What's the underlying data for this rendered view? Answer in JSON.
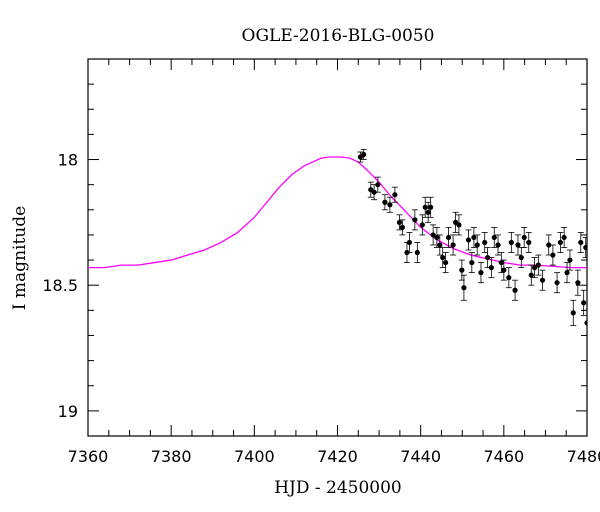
{
  "chart_data": {
    "type": "scatter",
    "title": "OGLE-2016-BLG-0050",
    "xlabel": "HJD - 2450000",
    "ylabel": "I magnitude",
    "xlim": [
      7360,
      7480
    ],
    "ylim": [
      19.1,
      17.6
    ],
    "y_inverted": true,
    "x_ticks": [
      7360,
      7380,
      7400,
      7420,
      7440,
      7460,
      7480
    ],
    "x_tick_labels": [
      "7360",
      "7380",
      "7400",
      "7420",
      "7440",
      "7460",
      "7480"
    ],
    "y_ticks": [
      18,
      18.5,
      19
    ],
    "y_tick_labels": [
      "18",
      "18.5",
      "19"
    ],
    "grid": false,
    "colors": {
      "model": "#ff00ff",
      "points": "#000000"
    },
    "series": [
      {
        "type": "line",
        "model": {
          "baseline_mag": 18.43,
          "t0": 7419.7,
          "tE": 9.8,
          "u0": 0.74
        },
        "x": [
          7360,
          7364,
          7368,
          7372,
          7376,
          7380,
          7384,
          7388,
          7392,
          7396,
          7400,
          7403,
          7406,
          7409,
          7412,
          7414,
          7416,
          7418,
          7419.7,
          7421,
          7423,
          7425,
          7427,
          7430,
          7433,
          7436,
          7440,
          7444,
          7448,
          7452,
          7456,
          7460,
          7464,
          7468,
          7472,
          7476,
          7480
        ],
        "y": [
          18.43,
          18.43,
          18.42,
          18.42,
          18.41,
          18.4,
          18.38,
          18.36,
          18.33,
          18.29,
          18.23,
          18.17,
          18.11,
          18.06,
          18.025,
          18.01,
          17.995,
          17.99,
          17.99,
          17.99,
          17.995,
          18.01,
          18.04,
          18.09,
          18.15,
          18.2,
          18.27,
          18.32,
          18.355,
          18.38,
          18.395,
          18.41,
          18.42,
          18.42,
          18.425,
          18.43,
          18.43
        ]
      },
      {
        "type": "scatter",
        "x": [
          7425.5,
          7426.3,
          7428.0,
          7428.8,
          7429.7,
          7431.4,
          7432.6,
          7433.8,
          7434.9,
          7435.6,
          7436.7,
          7437.3,
          7438.6,
          7439.2,
          7440.4,
          7441.1,
          7441.8,
          7442.4,
          7443.0,
          7443.9,
          7444.6,
          7445.3,
          7446.0,
          7446.7,
          7447.8,
          7448.4,
          7449.2,
          7449.9,
          7450.4,
          7451.5,
          7452.3,
          7452.8,
          7453.6,
          7454.5,
          7455.4,
          7456.1,
          7457.0,
          7457.7,
          7458.6,
          7459.4,
          7460.0,
          7461.2,
          7461.8,
          7462.7,
          7463.4,
          7464.2,
          7464.9,
          7466.0,
          7466.6,
          7467.4,
          7468.3,
          7469.3,
          7470.8,
          7471.8,
          7472.8,
          7473.6,
          7474.5,
          7475.2,
          7475.9,
          7476.7,
          7477.8,
          7478.5,
          7479.2,
          7479.7,
          7480.0
        ],
        "y": [
          17.99,
          17.98,
          18.12,
          18.13,
          18.1,
          18.17,
          18.18,
          18.14,
          18.25,
          18.27,
          18.37,
          18.33,
          18.24,
          18.37,
          18.26,
          18.19,
          18.21,
          18.19,
          18.3,
          18.31,
          18.34,
          18.39,
          18.41,
          18.31,
          18.34,
          18.25,
          18.26,
          18.44,
          18.51,
          18.32,
          18.41,
          18.31,
          18.34,
          18.45,
          18.33,
          18.39,
          18.43,
          18.31,
          18.34,
          18.41,
          18.44,
          18.47,
          18.33,
          18.52,
          18.34,
          18.39,
          18.31,
          18.33,
          18.46,
          18.43,
          18.42,
          18.48,
          18.34,
          18.38,
          18.49,
          18.33,
          18.31,
          18.45,
          18.4,
          18.61,
          18.49,
          18.33,
          18.57,
          18.35,
          18.65
        ],
        "err": [
          0.02,
          0.02,
          0.03,
          0.03,
          0.03,
          0.03,
          0.03,
          0.03,
          0.03,
          0.03,
          0.04,
          0.04,
          0.04,
          0.04,
          0.04,
          0.04,
          0.04,
          0.04,
          0.04,
          0.04,
          0.04,
          0.04,
          0.04,
          0.04,
          0.04,
          0.04,
          0.04,
          0.04,
          0.05,
          0.04,
          0.04,
          0.04,
          0.04,
          0.04,
          0.04,
          0.04,
          0.04,
          0.04,
          0.04,
          0.04,
          0.04,
          0.04,
          0.04,
          0.04,
          0.04,
          0.04,
          0.04,
          0.04,
          0.04,
          0.04,
          0.04,
          0.04,
          0.04,
          0.04,
          0.04,
          0.04,
          0.04,
          0.04,
          0.04,
          0.05,
          0.05,
          0.04,
          0.05,
          0.04,
          0.05
        ]
      }
    ]
  }
}
